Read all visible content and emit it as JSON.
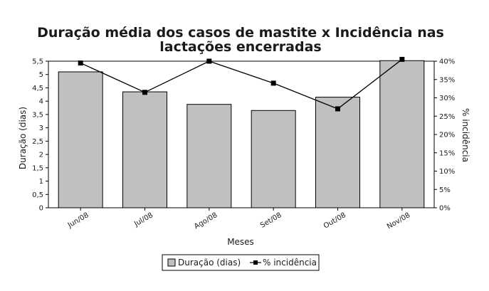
{
  "chart_data": {
    "type": "bar",
    "title_line1": "Duração média dos casos de mastite x Incidência nas",
    "title_line2": "lactações encerradas",
    "xlabel": "Meses",
    "ylabel_left": "Duração (dias)",
    "ylabel_right": "% incidência",
    "categories": [
      "Jun/08",
      "Jul/08",
      "Ago/08",
      "Set/08",
      "Out/08",
      "Nov/08"
    ],
    "left_axis": {
      "min": 0,
      "max": 5.5,
      "ticks": [
        "0",
        "0,5",
        "1",
        "1,5",
        "2",
        "2,5",
        "3",
        "3,5",
        "4",
        "4,5",
        "5",
        "5,5"
      ]
    },
    "right_axis": {
      "min": 0,
      "max": 40,
      "ticks": [
        "0%",
        "5%",
        "10%",
        "15%",
        "20%",
        "25%",
        "30%",
        "35%",
        "40%"
      ]
    },
    "series": [
      {
        "name": "Duração (dias)",
        "kind": "bar",
        "axis": "left",
        "color": "#c0c0c0",
        "values": [
          5.1,
          4.35,
          3.88,
          3.65,
          4.15,
          5.52
        ]
      },
      {
        "name": "% incidência",
        "kind": "line",
        "axis": "right",
        "color": "#000000",
        "values": [
          39.5,
          31.5,
          40.0,
          34.0,
          27.0,
          40.5
        ]
      }
    ],
    "grid": false,
    "legend_position": "bottom"
  }
}
